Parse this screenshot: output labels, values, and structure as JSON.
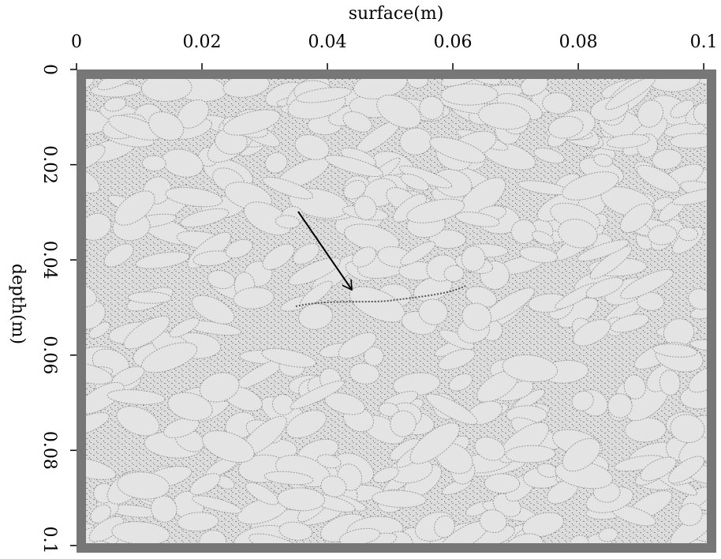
{
  "chart_data": {
    "type": "image",
    "xlabel": "surface(m)",
    "ylabel": "depth(m)",
    "xlim": [
      0,
      0.102
    ],
    "xticks": [
      0,
      0.02,
      0.04,
      0.06,
      0.08,
      0.1
    ],
    "ylim": [
      0,
      0.1015
    ],
    "yticks": [
      0,
      0.02,
      0.04,
      0.06,
      0.08,
      0.1
    ]
  }
}
